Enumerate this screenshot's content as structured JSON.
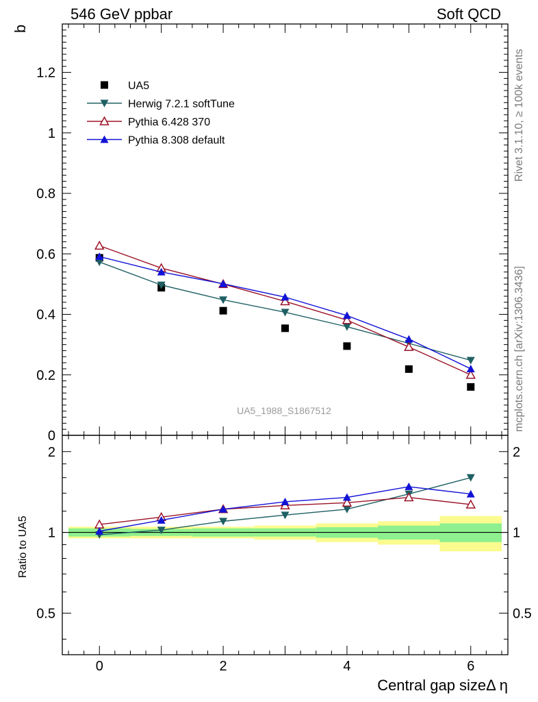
{
  "header": {
    "left_title": "546 GeV ppbar",
    "right_title": "Soft QCD"
  },
  "side_labels": {
    "rivet": "Rivet 3.1.10, ≥ 100k events",
    "mcplots": "mcplots.cern.ch [arXiv:1306.3436]"
  },
  "watermark": "UA5_1988_S1867512",
  "colors": {
    "data": "#000000",
    "herwig": "#1f5f63",
    "pythia6": "#9a1227",
    "pythia8": "#1212d6",
    "band_inner": "#8ef08e",
    "band_outer": "#fbfb8f"
  },
  "chart_data": [
    {
      "type": "scatter",
      "panel": "main",
      "ylabel": "b",
      "xlim": [
        -0.6,
        6.6
      ],
      "ylim": [
        0,
        1.36
      ],
      "y_ticks": [
        "0",
        "0.2",
        "0.4",
        "0.6",
        "0.8",
        "1",
        "1.2"
      ],
      "legend_position": "top-left",
      "x": [
        0,
        1,
        2,
        3,
        4,
        5,
        6
      ],
      "series": [
        {
          "name": "UA5",
          "marker": "square",
          "values": [
            0.587,
            0.488,
            0.412,
            0.354,
            0.295,
            0.219,
            0.16
          ]
        },
        {
          "name": "Herwig 7.2.1 softTune",
          "marker": "triangle-down",
          "values": [
            0.573,
            0.497,
            0.448,
            0.407,
            0.359,
            0.304,
            0.248
          ]
        },
        {
          "name": "Pythia 6.428 370",
          "marker": "triangle-up-open",
          "values": [
            0.627,
            0.553,
            0.5,
            0.443,
            0.381,
            0.292,
            0.2
          ]
        },
        {
          "name": "Pythia 8.308 default",
          "marker": "triangle-up",
          "values": [
            0.591,
            0.54,
            0.501,
            0.457,
            0.396,
            0.318,
            0.22
          ]
        }
      ]
    },
    {
      "type": "line",
      "panel": "ratio",
      "xlabel": "Central gap sizeΔ η",
      "ylabel": "Ratio to UA5",
      "xlim": [
        -0.6,
        6.6
      ],
      "ylim": [
        0.35,
        2.3
      ],
      "x_ticks": [
        "0",
        "2",
        "4",
        "6"
      ],
      "y_ticks": [
        "0.5",
        "1",
        "2"
      ],
      "x": [
        0,
        1,
        2,
        3,
        4,
        5,
        6
      ],
      "series": [
        {
          "name": "Herwig 7.2.1 softTune",
          "values": [
            0.98,
            1.02,
            1.1,
            1.16,
            1.22,
            1.39,
            1.6
          ]
        },
        {
          "name": "Pythia 6.428 370",
          "values": [
            1.07,
            1.14,
            1.22,
            1.26,
            1.29,
            1.35,
            1.27
          ]
        },
        {
          "name": "Pythia 8.308 default",
          "values": [
            1.01,
            1.11,
            1.22,
            1.3,
            1.35,
            1.48,
            1.39
          ]
        }
      ],
      "band": {
        "inner": [
          0.035,
          0.03,
          0.035,
          0.035,
          0.045,
          0.06,
          0.08
        ],
        "outer": [
          0.05,
          0.05,
          0.05,
          0.06,
          0.08,
          0.1,
          0.15
        ]
      }
    }
  ]
}
